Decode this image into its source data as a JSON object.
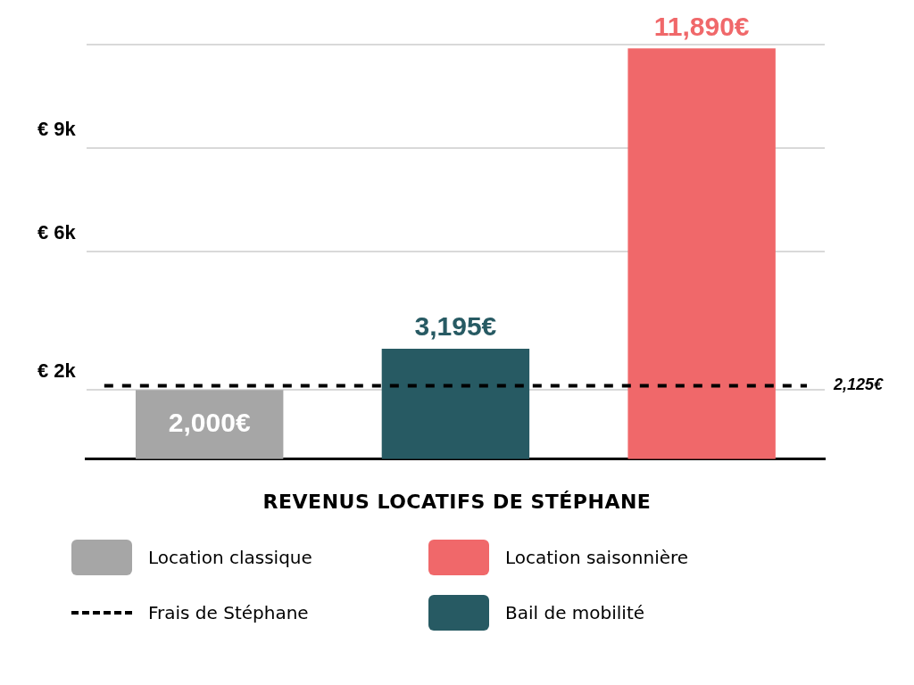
{
  "chart_data": {
    "type": "bar",
    "title": "REVENUS LOCATIFS DE STÉPHANE",
    "categories": [
      null,
      null,
      null
    ],
    "series": [
      {
        "name": "Location classique",
        "color": "#a6a6a6",
        "values": [
          2000,
          null,
          null
        ],
        "value_labels": [
          "2,000€",
          null,
          null
        ]
      },
      {
        "name": "Bail de mobilité",
        "color": "#275a63",
        "values": [
          null,
          3195,
          null
        ],
        "value_labels": [
          null,
          "3,195€",
          null
        ]
      },
      {
        "name": "Location saisonnière",
        "color": "#f0686a",
        "values": [
          null,
          null,
          11890
        ],
        "value_labels": [
          null,
          null,
          "11,890€"
        ]
      }
    ],
    "ylim": [
      0,
      12000
    ],
    "yticks": [
      {
        "value": 2000,
        "label": "€ 2k"
      },
      {
        "value": 6000,
        "label": "€ 6k"
      },
      {
        "value": 9000,
        "label": "€ 9k"
      },
      {
        "value": 12000,
        "label": null
      }
    ],
    "ref_lines": [
      {
        "axis": "y",
        "value": 2125,
        "label": "2,125€",
        "color": "#000000",
        "line_style": "dashed"
      }
    ],
    "annotations": [
      "Frais de Stéphane"
    ],
    "grid": "y",
    "legend": "bottom"
  }
}
